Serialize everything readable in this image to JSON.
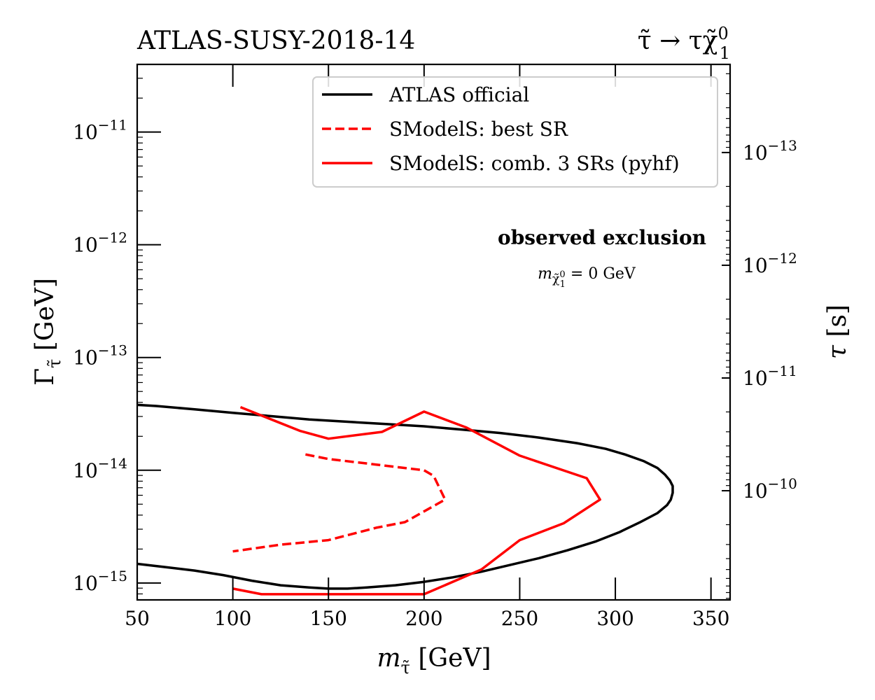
{
  "title_left": "ATLAS-SUSY-2018-14",
  "title_right": {
    "main": "τ̃ → τχ̃",
    "sup": "0",
    "sub": "1"
  },
  "legend": {
    "official": "ATLAS official",
    "best_sr": "SModelS: best SR",
    "comb": "SModelS: comb. 3 SRs (pyhf)"
  },
  "annotation": {
    "bold": "observed exclusion",
    "mass_prefix": "m",
    "mass_sub": "χ̃",
    "mass_subsup": "0",
    "mass_subsub": "1",
    "mass_suffix": " = 0 GeV"
  },
  "colors": {
    "official": "#000000",
    "smodels": "#ff0000"
  },
  "chart_data": {
    "type": "line",
    "xlabel": "m_τ̃ [GeV]",
    "ylabel": "Γ_τ̃ [GeV]",
    "y2label": "τ [s]",
    "xlim": [
      50,
      360
    ],
    "ylim_log10": [
      -15.15,
      -10.4
    ],
    "xticks": [
      50,
      100,
      150,
      200,
      250,
      300,
      350
    ],
    "yticks_log10": [
      -15,
      -14,
      -13,
      -12,
      -11
    ],
    "y2ticks_log10": [
      -10,
      -11,
      -12,
      -13
    ],
    "series": [
      {
        "name": "ATLAS official",
        "style": "solid",
        "color": "#000000",
        "x": [
          50,
          60,
          80,
          100,
          120,
          140,
          160,
          180,
          200,
          220,
          240,
          260,
          280,
          295,
          305,
          315,
          322,
          326,
          328.5,
          330,
          330,
          329,
          327,
          322,
          313,
          302,
          290,
          275,
          260,
          245,
          230,
          215,
          200,
          185,
          170,
          160,
          150,
          140,
          125,
          110,
          95,
          80,
          65,
          50
        ],
        "log10y": [
          -13.42,
          -13.43,
          -13.46,
          -13.49,
          -13.52,
          -13.55,
          -13.57,
          -13.59,
          -13.61,
          -13.64,
          -13.67,
          -13.71,
          -13.76,
          -13.81,
          -13.86,
          -13.92,
          -13.98,
          -14.04,
          -14.09,
          -14.14,
          -14.2,
          -14.26,
          -14.31,
          -14.38,
          -14.46,
          -14.55,
          -14.63,
          -14.71,
          -14.78,
          -14.84,
          -14.9,
          -14.95,
          -14.99,
          -15.02,
          -15.04,
          -15.05,
          -15.05,
          -15.04,
          -15.02,
          -14.98,
          -14.93,
          -14.89,
          -14.86,
          -14.83
        ]
      },
      {
        "name": "SModelS: best SR",
        "style": "dashed",
        "color": "#ff0000",
        "x": [
          138,
          150,
          175,
          200,
          205,
          211,
          190,
          175,
          150,
          125,
          100
        ],
        "log10y": [
          -13.86,
          -13.9,
          -13.95,
          -14.0,
          -14.05,
          -14.26,
          -14.46,
          -14.51,
          -14.62,
          -14.66,
          -14.72
        ]
      },
      {
        "name": "SModelS: comb. 3 SRs (pyhf)",
        "style": "solid",
        "color": "#ff0000",
        "x": [
          104,
          135,
          150,
          178,
          200,
          222,
          250,
          285,
          292,
          273,
          250,
          230,
          200,
          115,
          100
        ],
        "log10y": [
          -13.44,
          -13.65,
          -13.72,
          -13.66,
          -13.48,
          -13.62,
          -13.87,
          -14.07,
          -14.26,
          -14.47,
          -14.62,
          -14.88,
          -15.1,
          -15.1,
          -15.05
        ]
      }
    ]
  }
}
